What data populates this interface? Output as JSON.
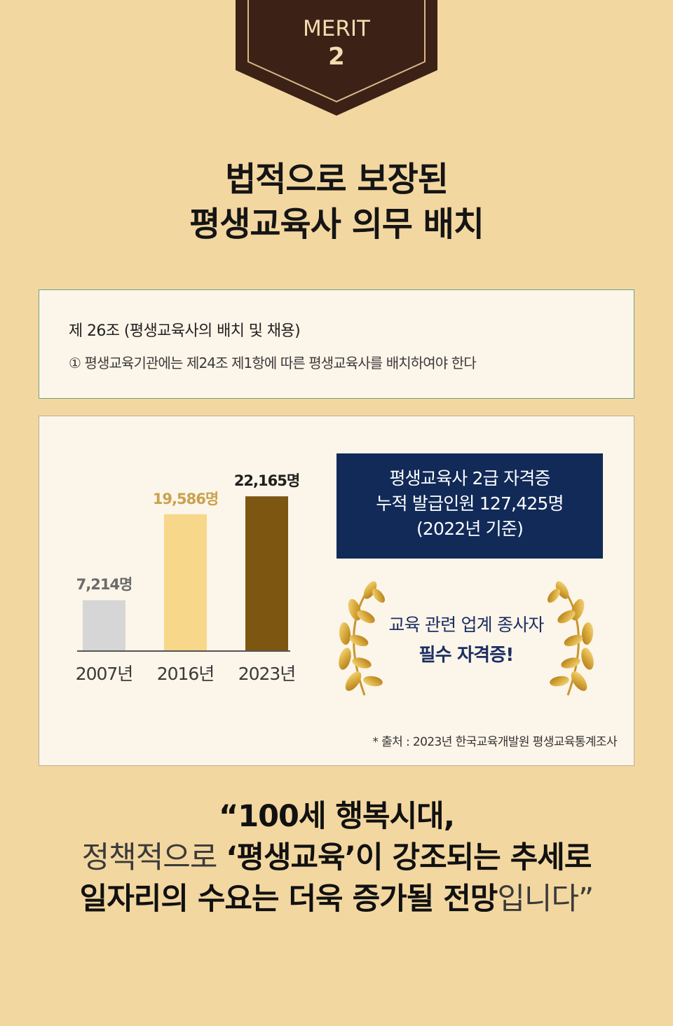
{
  "badge": {
    "label": "MERIT",
    "number": "2"
  },
  "headline": {
    "line1": "법적으로 보장된",
    "line2": "평생교육사 의무 배치"
  },
  "law": {
    "title": "제 26조 (평생교육사의 배치 및 채용)",
    "text": "① 평생교육기관에는 제24조 제1항에 따른 평생교육사를 배치하여야 한다"
  },
  "chart_data": {
    "type": "bar",
    "categories": [
      "2007년",
      "2016년",
      "2023년"
    ],
    "values": [
      7214,
      19586,
      22165
    ],
    "data_labels": [
      "7,214명",
      "19,586명",
      "22,165명"
    ],
    "ylim": [
      0,
      24000
    ],
    "colors": [
      "#d6d6d6",
      "#f7d789",
      "#7d5711"
    ],
    "label_colors": [
      "#6b6b6b",
      "#caa24f",
      "#1f1f1f"
    ],
    "grid": false,
    "title": "",
    "xlabel": "",
    "ylabel": ""
  },
  "navy_box": {
    "line1": "평생교육사 2급 자격증",
    "line2": "누적 발급인원 127,425명",
    "line3": "(2022년 기준)"
  },
  "wreath": {
    "line1": "교육 관련 업계 종사자",
    "line2": "필수 자격증!"
  },
  "source": "* 출처 : 2023년 한국교육개발원 평생교육통계조사",
  "quote": {
    "line1": "“100세 행복시대,",
    "line2_light": "정책적으로 ",
    "line2_bold": "‘평생교육’이 강조되는 추세로",
    "line3_bold": "일자리의 수요는 더욱 증가될 전망",
    "line3_light": "입니다”"
  },
  "colors": {
    "background": "#f3d7a0",
    "badge": "#3c2116",
    "navy": "#112a58",
    "wreath_gold": "#d9a93b"
  }
}
